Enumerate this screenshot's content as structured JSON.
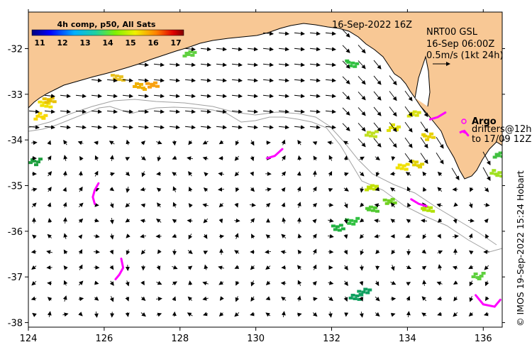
{
  "colorbar": {
    "title": "4h comp, p50, All Sats",
    "ticks": [
      "11",
      "12",
      "13",
      "14",
      "15",
      "16",
      "17"
    ]
  },
  "header": {
    "date": "16-Sep-2022 16Z"
  },
  "info": {
    "line1": "NRT00 GSL",
    "line2": "16-Sep 06:00Z",
    "line3": "0.5m/s (1kt 24h)"
  },
  "legend": {
    "argo": "Argo",
    "drifters1": "drifters@12h",
    "drifters2": "to 17/09 12Z"
  },
  "credit": "© IMOS 19-Sep-2022 15:24 Hobart",
  "axes": {
    "x_ticks": [
      "124",
      "126",
      "128",
      "130",
      "132",
      "134",
      "136"
    ],
    "y_ticks": [
      "-32",
      "-33",
      "-34",
      "-35",
      "-36",
      "-37",
      "-38"
    ],
    "x_range": [
      124,
      136.5
    ],
    "y_range": [
      -38.1,
      -31.2
    ]
  },
  "colors": {
    "land": "#f8c895",
    "argo": "#ff00ff",
    "shelf": "#a0a0a0"
  },
  "sst_patches": [
    {
      "lon": 124.4,
      "lat": -33.2,
      "color": "#f0e000"
    },
    {
      "lon": 124.25,
      "lat": -33.45,
      "color": "#f8d800"
    },
    {
      "lon": 124.5,
      "lat": -33.1,
      "color": "#e8c000"
    },
    {
      "lon": 124.15,
      "lat": -34.45,
      "color": "#20a040"
    },
    {
      "lon": 126.3,
      "lat": -32.6,
      "color": "#e8c020"
    },
    {
      "lon": 126.9,
      "lat": -32.8,
      "color": "#f0b000"
    },
    {
      "lon": 127.2,
      "lat": -32.75,
      "color": "#f8a010"
    },
    {
      "lon": 128.2,
      "lat": -32.1,
      "color": "#60d040"
    },
    {
      "lon": 132.5,
      "lat": -32.3,
      "color": "#30c040"
    },
    {
      "lon": 133.0,
      "lat": -33.85,
      "color": "#c0e020"
    },
    {
      "lon": 133.6,
      "lat": -33.7,
      "color": "#e0e000"
    },
    {
      "lon": 134.1,
      "lat": -33.4,
      "color": "#d8e010"
    },
    {
      "lon": 134.5,
      "lat": -33.9,
      "color": "#e8d000"
    },
    {
      "lon": 133.8,
      "lat": -34.55,
      "color": "#f0e000"
    },
    {
      "lon": 134.2,
      "lat": -34.5,
      "color": "#e0d000"
    },
    {
      "lon": 133.5,
      "lat": -35.3,
      "color": "#70d020"
    },
    {
      "lon": 133.0,
      "lat": -35.5,
      "color": "#50c830"
    },
    {
      "lon": 132.5,
      "lat": -35.75,
      "color": "#30c040"
    },
    {
      "lon": 132.1,
      "lat": -35.9,
      "color": "#20b040"
    },
    {
      "lon": 136.3,
      "lat": -34.7,
      "color": "#a0e020"
    },
    {
      "lon": 136.4,
      "lat": -34.3,
      "color": "#40c040"
    },
    {
      "lon": 132.8,
      "lat": -37.3,
      "color": "#10a060"
    },
    {
      "lon": 132.6,
      "lat": -37.4,
      "color": "#10a060"
    },
    {
      "lon": 135.8,
      "lat": -36.95,
      "color": "#60d040"
    },
    {
      "lon": 133.0,
      "lat": -35.0,
      "color": "#c0e000"
    },
    {
      "lon": 134.5,
      "lat": -35.5,
      "color": "#b0e000"
    }
  ],
  "argo_tracks": [
    {
      "points": [
        [
          125.85,
          -34.95
        ],
        [
          125.75,
          -35.1
        ],
        [
          125.7,
          -35.25
        ],
        [
          125.75,
          -35.4
        ]
      ]
    },
    {
      "points": [
        [
          126.45,
          -36.6
        ],
        [
          126.5,
          -36.8
        ],
        [
          126.4,
          -36.95
        ],
        [
          126.3,
          -37.05
        ]
      ]
    },
    {
      "points": [
        [
          130.3,
          -34.4
        ],
        [
          130.5,
          -34.35
        ],
        [
          130.7,
          -34.2
        ]
      ]
    },
    {
      "points": [
        [
          134.6,
          -33.55
        ],
        [
          134.8,
          -33.5
        ],
        [
          135.0,
          -33.4
        ]
      ]
    },
    {
      "points": [
        [
          134.1,
          -35.3
        ],
        [
          134.3,
          -35.4
        ],
        [
          134.5,
          -35.45
        ]
      ]
    },
    {
      "points": [
        [
          135.8,
          -37.4
        ],
        [
          136.0,
          -37.6
        ],
        [
          136.3,
          -37.65
        ],
        [
          136.45,
          -37.5
        ]
      ]
    },
    {
      "points": [
        [
          135.5,
          -33.8
        ],
        [
          135.6,
          -33.9
        ]
      ]
    }
  ]
}
